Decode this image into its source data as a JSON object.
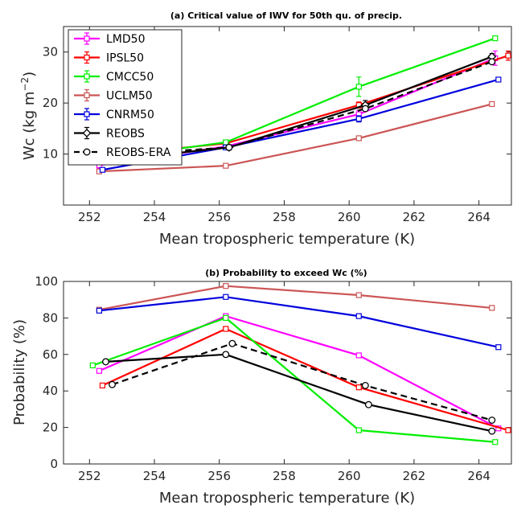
{
  "chart_data": [
    {
      "type": "line",
      "title": "(a) Critical value of IWV for 50th qu. of precip.",
      "xlabel": "Mean tropospheric temperature (K)",
      "ylabel": "Wc (kg m^{-2})",
      "ylabel_main": "Wc (kg m",
      "ylabel_sup": "−2",
      "ylabel_close": ")",
      "xlim": [
        251.2,
        265
      ],
      "ylim": [
        0,
        35
      ],
      "xticks": [
        252,
        254,
        256,
        258,
        260,
        262,
        264
      ],
      "yticks": [
        10,
        20,
        30
      ],
      "grid": false,
      "legend": "top-left",
      "series": [
        {
          "name": "LMD50",
          "color": "#ff00ff",
          "marker": "square",
          "dash": false,
          "errorbars": true,
          "x": [
            252.3,
            256.2,
            260.3,
            264.5
          ],
          "y": [
            7.8,
            11.5,
            17.8,
            28.8
          ],
          "err": [
            0.6,
            0.3,
            0.8,
            1.4
          ]
        },
        {
          "name": "IPSL50",
          "color": "#ff0000",
          "marker": "square",
          "dash": false,
          "errorbars": true,
          "x": [
            252.4,
            256.2,
            260.3,
            264.9
          ],
          "y": [
            9.6,
            12.1,
            19.6,
            29.3
          ],
          "err": [
            0.7,
            0.3,
            0.6,
            0.9
          ]
        },
        {
          "name": "CMCC50",
          "color": "#00ee00",
          "marker": "square",
          "dash": false,
          "errorbars": true,
          "x": [
            252.1,
            256.2,
            260.3,
            264.5
          ],
          "y": [
            8.8,
            12.3,
            23.2,
            32.7
          ],
          "err": [
            0.8,
            0.4,
            1.9,
            0.4
          ]
        },
        {
          "name": "UCLM50",
          "color": "#cc5555",
          "marker": "square",
          "dash": false,
          "errorbars": true,
          "x": [
            252.3,
            256.2,
            260.3,
            264.4
          ],
          "y": [
            6.6,
            7.7,
            13.1,
            19.8
          ],
          "err": [
            0.2,
            0.2,
            0.2,
            0.3
          ]
        },
        {
          "name": "CNRM50",
          "color": "#0000dd",
          "marker": "square",
          "dash": false,
          "errorbars": true,
          "x": [
            252.4,
            256.2,
            260.3,
            264.6
          ],
          "y": [
            6.9,
            11.3,
            16.9,
            24.6
          ],
          "err": [
            0.3,
            0.3,
            0.6,
            0.4
          ]
        },
        {
          "name": "REOBS",
          "color": "#000000",
          "marker": "diamond",
          "dash": false,
          "errorbars": true,
          "x": [
            252.5,
            256.3,
            260.5,
            264.4
          ],
          "y": [
            8.7,
            11.3,
            19.6,
            29.1
          ],
          "err": [
            0.7,
            0.5,
            0.9,
            0.6
          ]
        },
        {
          "name": "REOBS-ERA",
          "color": "#000000",
          "marker": "circle",
          "dash": true,
          "errorbars": false,
          "x": [
            252.7,
            256.3,
            260.5,
            264.4
          ],
          "y": [
            9.8,
            11.3,
            18.9,
            28.1
          ],
          "err": []
        }
      ]
    },
    {
      "type": "line",
      "title": "(b) Probability to exceed Wc (%)",
      "xlabel": "Mean tropospheric temperature (K)",
      "ylabel": "Probability (%)",
      "xlim": [
        251.2,
        265
      ],
      "ylim": [
        0,
        100
      ],
      "xticks": [
        252,
        254,
        256,
        258,
        260,
        262,
        264
      ],
      "yticks": [
        0,
        20,
        40,
        60,
        80,
        100
      ],
      "grid": false,
      "series": [
        {
          "name": "LMD50",
          "color": "#ff00ff",
          "marker": "square",
          "dash": false,
          "x": [
            252.3,
            256.2,
            260.3,
            264.6
          ],
          "y": [
            51,
            81,
            59.5,
            19.5
          ]
        },
        {
          "name": "IPSL50",
          "color": "#ff0000",
          "marker": "square",
          "dash": false,
          "x": [
            252.4,
            256.2,
            260.3,
            264.9
          ],
          "y": [
            43,
            74,
            42,
            18.5
          ]
        },
        {
          "name": "CMCC50",
          "color": "#00ee00",
          "marker": "square",
          "dash": false,
          "x": [
            252.1,
            256.2,
            260.3,
            264.5
          ],
          "y": [
            54,
            80,
            18.5,
            12
          ]
        },
        {
          "name": "UCLM50",
          "color": "#cc5555",
          "marker": "square",
          "dash": false,
          "x": [
            252.3,
            256.2,
            260.3,
            264.4
          ],
          "y": [
            84.5,
            97.5,
            92.5,
            85.5
          ]
        },
        {
          "name": "CNRM50",
          "color": "#0000dd",
          "marker": "square",
          "dash": false,
          "x": [
            252.3,
            256.2,
            260.3,
            264.6
          ],
          "y": [
            84,
            91.5,
            81,
            64
          ]
        },
        {
          "name": "REOBS",
          "color": "#000000",
          "marker": "circle",
          "dash": false,
          "x": [
            252.5,
            256.2,
            260.6,
            264.4
          ],
          "y": [
            56,
            60,
            32.5,
            18
          ]
        },
        {
          "name": "REOBS-ERA",
          "color": "#000000",
          "marker": "circle",
          "dash": true,
          "x": [
            252.7,
            256.4,
            260.5,
            264.4
          ],
          "y": [
            43.5,
            66,
            43,
            24
          ]
        }
      ]
    }
  ]
}
